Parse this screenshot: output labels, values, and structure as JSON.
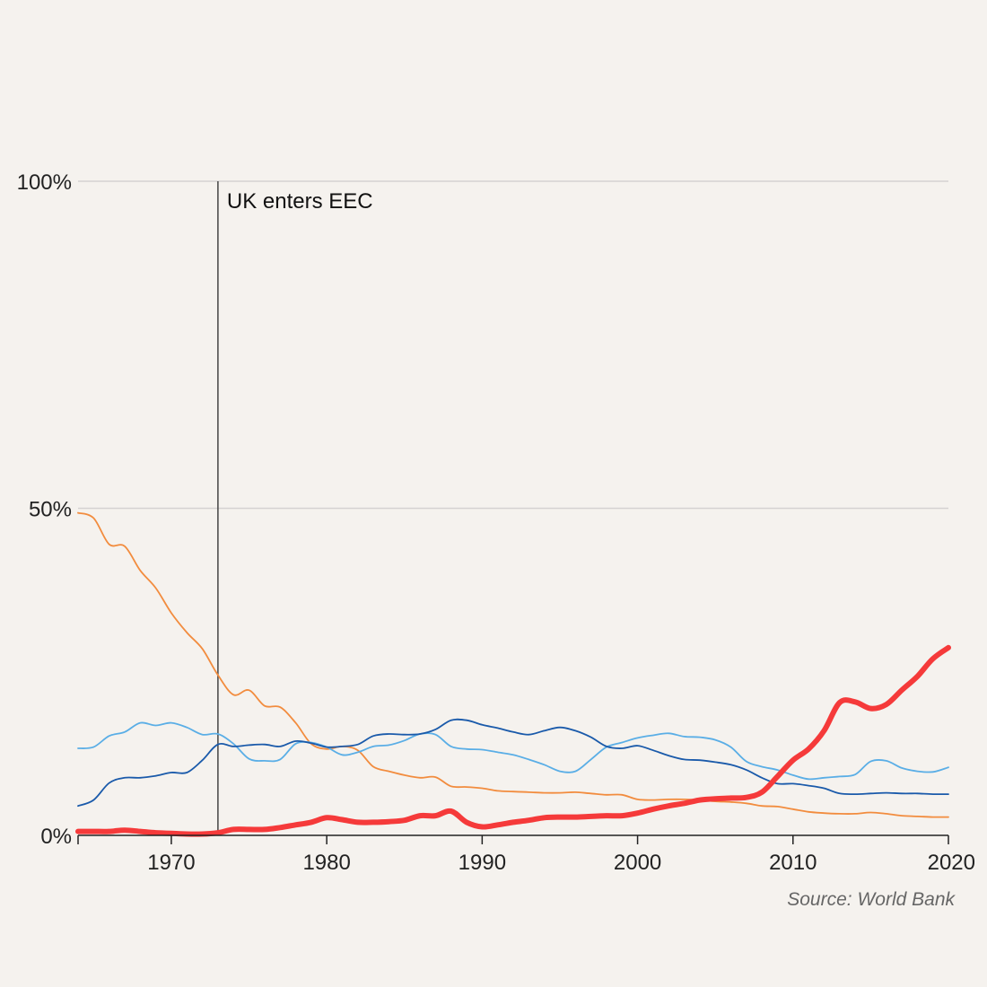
{
  "chart_data": {
    "type": "line",
    "title": "",
    "xlabel": "",
    "ylabel": "",
    "xlim": [
      1964,
      2020
    ],
    "ylim": [
      0,
      100
    ],
    "grid": true,
    "x_ticks": [
      1970,
      1980,
      1990,
      2000,
      2010,
      2020
    ],
    "y_ticks": [
      {
        "value": 0,
        "label": "0%"
      },
      {
        "value": 50,
        "label": "50%"
      },
      {
        "value": 100,
        "label": "100%"
      }
    ],
    "annotations": [
      {
        "x": 1973,
        "label": "UK enters EEC"
      }
    ],
    "source": "Source: World Bank",
    "series": [
      {
        "color": "#f28c3e",
        "stroke_width": 1.8,
        "points": [
          [
            1964,
            49.3
          ],
          [
            1965,
            48.5
          ],
          [
            1966,
            44.5
          ],
          [
            1967,
            44.2
          ],
          [
            1968,
            40.5
          ],
          [
            1969,
            37.8
          ],
          [
            1970,
            34.0
          ],
          [
            1971,
            31.0
          ],
          [
            1972,
            28.5
          ],
          [
            1973,
            24.5
          ],
          [
            1974,
            21.5
          ],
          [
            1975,
            22.2
          ],
          [
            1976,
            19.8
          ],
          [
            1977,
            19.6
          ],
          [
            1978,
            17.2
          ],
          [
            1979,
            14.0
          ],
          [
            1980,
            13.2
          ],
          [
            1981,
            13.6
          ],
          [
            1982,
            13.0
          ],
          [
            1983,
            10.5
          ],
          [
            1984,
            9.8
          ],
          [
            1985,
            9.2
          ],
          [
            1986,
            8.8
          ],
          [
            1987,
            8.9
          ],
          [
            1988,
            7.5
          ],
          [
            1989,
            7.4
          ],
          [
            1990,
            7.2
          ],
          [
            1991,
            6.8
          ],
          [
            1992,
            6.7
          ],
          [
            1993,
            6.6
          ],
          [
            1994,
            6.5
          ],
          [
            1995,
            6.5
          ],
          [
            1996,
            6.6
          ],
          [
            1997,
            6.4
          ],
          [
            1998,
            6.2
          ],
          [
            1999,
            6.2
          ],
          [
            2000,
            5.5
          ],
          [
            2001,
            5.4
          ],
          [
            2002,
            5.5
          ],
          [
            2003,
            5.5
          ],
          [
            2004,
            5.4
          ],
          [
            2005,
            5.2
          ],
          [
            2006,
            5.1
          ],
          [
            2007,
            4.9
          ],
          [
            2008,
            4.5
          ],
          [
            2009,
            4.4
          ],
          [
            2010,
            4.0
          ],
          [
            2011,
            3.6
          ],
          [
            2012,
            3.4
          ],
          [
            2013,
            3.3
          ],
          [
            2014,
            3.3
          ],
          [
            2015,
            3.5
          ],
          [
            2016,
            3.3
          ],
          [
            2017,
            3.0
          ],
          [
            2018,
            2.9
          ],
          [
            2019,
            2.8
          ],
          [
            2020,
            2.8
          ]
        ]
      },
      {
        "color": "#5aaee6",
        "stroke_width": 1.8,
        "points": [
          [
            1964,
            13.3
          ],
          [
            1965,
            13.5
          ],
          [
            1966,
            15.2
          ],
          [
            1967,
            15.8
          ],
          [
            1968,
            17.2
          ],
          [
            1969,
            16.8
          ],
          [
            1970,
            17.2
          ],
          [
            1971,
            16.5
          ],
          [
            1972,
            15.4
          ],
          [
            1973,
            15.5
          ],
          [
            1974,
            14.0
          ],
          [
            1975,
            11.7
          ],
          [
            1976,
            11.4
          ],
          [
            1977,
            11.6
          ],
          [
            1978,
            14.0
          ],
          [
            1979,
            14.2
          ],
          [
            1980,
            13.5
          ],
          [
            1981,
            12.3
          ],
          [
            1982,
            12.7
          ],
          [
            1983,
            13.6
          ],
          [
            1984,
            13.8
          ],
          [
            1985,
            14.5
          ],
          [
            1986,
            15.5
          ],
          [
            1987,
            15.4
          ],
          [
            1988,
            13.6
          ],
          [
            1989,
            13.2
          ],
          [
            1990,
            13.1
          ],
          [
            1991,
            12.7
          ],
          [
            1992,
            12.3
          ],
          [
            1993,
            11.6
          ],
          [
            1994,
            10.8
          ],
          [
            1995,
            9.8
          ],
          [
            1996,
            9.8
          ],
          [
            1997,
            11.6
          ],
          [
            1998,
            13.5
          ],
          [
            1999,
            14.2
          ],
          [
            2000,
            14.9
          ],
          [
            2001,
            15.3
          ],
          [
            2002,
            15.6
          ],
          [
            2003,
            15.1
          ],
          [
            2004,
            15.0
          ],
          [
            2005,
            14.6
          ],
          [
            2006,
            13.5
          ],
          [
            2007,
            11.3
          ],
          [
            2008,
            10.5
          ],
          [
            2009,
            10.0
          ],
          [
            2010,
            9.2
          ],
          [
            2011,
            8.6
          ],
          [
            2012,
            8.8
          ],
          [
            2013,
            9.0
          ],
          [
            2014,
            9.3
          ],
          [
            2015,
            11.3
          ],
          [
            2016,
            11.4
          ],
          [
            2017,
            10.3
          ],
          [
            2018,
            9.8
          ],
          [
            2019,
            9.7
          ],
          [
            2020,
            10.4
          ]
        ]
      },
      {
        "color": "#1a5aaa",
        "stroke_width": 1.8,
        "points": [
          [
            1964,
            4.5
          ],
          [
            1965,
            5.4
          ],
          [
            1966,
            8.0
          ],
          [
            1967,
            8.8
          ],
          [
            1968,
            8.8
          ],
          [
            1969,
            9.1
          ],
          [
            1970,
            9.6
          ],
          [
            1971,
            9.6
          ],
          [
            1972,
            11.5
          ],
          [
            1973,
            13.9
          ],
          [
            1974,
            13.6
          ],
          [
            1975,
            13.8
          ],
          [
            1976,
            13.9
          ],
          [
            1977,
            13.6
          ],
          [
            1978,
            14.4
          ],
          [
            1979,
            14.1
          ],
          [
            1980,
            13.5
          ],
          [
            1981,
            13.6
          ],
          [
            1982,
            13.9
          ],
          [
            1983,
            15.2
          ],
          [
            1984,
            15.5
          ],
          [
            1985,
            15.4
          ],
          [
            1986,
            15.5
          ],
          [
            1987,
            16.2
          ],
          [
            1988,
            17.6
          ],
          [
            1989,
            17.6
          ],
          [
            1990,
            16.9
          ],
          [
            1991,
            16.4
          ],
          [
            1992,
            15.8
          ],
          [
            1993,
            15.4
          ],
          [
            1994,
            16.0
          ],
          [
            1995,
            16.5
          ],
          [
            1996,
            16.0
          ],
          [
            1997,
            15.0
          ],
          [
            1998,
            13.6
          ],
          [
            1999,
            13.3
          ],
          [
            2000,
            13.7
          ],
          [
            2001,
            13.0
          ],
          [
            2002,
            12.2
          ],
          [
            2003,
            11.6
          ],
          [
            2004,
            11.5
          ],
          [
            2005,
            11.2
          ],
          [
            2006,
            10.8
          ],
          [
            2007,
            10.0
          ],
          [
            2008,
            8.8
          ],
          [
            2009,
            7.9
          ],
          [
            2010,
            7.9
          ],
          [
            2011,
            7.6
          ],
          [
            2012,
            7.2
          ],
          [
            2013,
            6.4
          ],
          [
            2014,
            6.3
          ],
          [
            2015,
            6.4
          ],
          [
            2016,
            6.5
          ],
          [
            2017,
            6.4
          ],
          [
            2018,
            6.4
          ],
          [
            2019,
            6.3
          ],
          [
            2020,
            6.3
          ]
        ]
      },
      {
        "color": "#f53a3a",
        "stroke_width": 6,
        "points": [
          [
            1964,
            0.6
          ],
          [
            1965,
            0.6
          ],
          [
            1966,
            0.6
          ],
          [
            1967,
            0.8
          ],
          [
            1968,
            0.6
          ],
          [
            1969,
            0.4
          ],
          [
            1970,
            0.3
          ],
          [
            1971,
            0.2
          ],
          [
            1972,
            0.2
          ],
          [
            1973,
            0.4
          ],
          [
            1974,
            0.9
          ],
          [
            1975,
            0.9
          ],
          [
            1976,
            0.9
          ],
          [
            1977,
            1.2
          ],
          [
            1978,
            1.6
          ],
          [
            1979,
            2.0
          ],
          [
            1980,
            2.7
          ],
          [
            1981,
            2.4
          ],
          [
            1982,
            2.0
          ],
          [
            1983,
            2.0
          ],
          [
            1984,
            2.1
          ],
          [
            1985,
            2.3
          ],
          [
            1986,
            3.0
          ],
          [
            1987,
            3.0
          ],
          [
            1988,
            3.7
          ],
          [
            1989,
            2.0
          ],
          [
            1990,
            1.3
          ],
          [
            1991,
            1.6
          ],
          [
            1992,
            2.0
          ],
          [
            1993,
            2.3
          ],
          [
            1994,
            2.7
          ],
          [
            1995,
            2.8
          ],
          [
            1996,
            2.8
          ],
          [
            1997,
            2.9
          ],
          [
            1998,
            3.0
          ],
          [
            1999,
            3.0
          ],
          [
            2000,
            3.4
          ],
          [
            2001,
            4.0
          ],
          [
            2002,
            4.5
          ],
          [
            2003,
            4.9
          ],
          [
            2004,
            5.4
          ],
          [
            2005,
            5.6
          ],
          [
            2006,
            5.7
          ],
          [
            2007,
            5.8
          ],
          [
            2008,
            6.6
          ],
          [
            2009,
            9.0
          ],
          [
            2010,
            11.5
          ],
          [
            2011,
            13.2
          ],
          [
            2012,
            16.0
          ],
          [
            2013,
            20.3
          ],
          [
            2014,
            20.4
          ],
          [
            2015,
            19.4
          ],
          [
            2016,
            20.0
          ],
          [
            2017,
            22.2
          ],
          [
            2018,
            24.3
          ],
          [
            2019,
            27.0
          ],
          [
            2020,
            28.7
          ]
        ]
      }
    ]
  }
}
